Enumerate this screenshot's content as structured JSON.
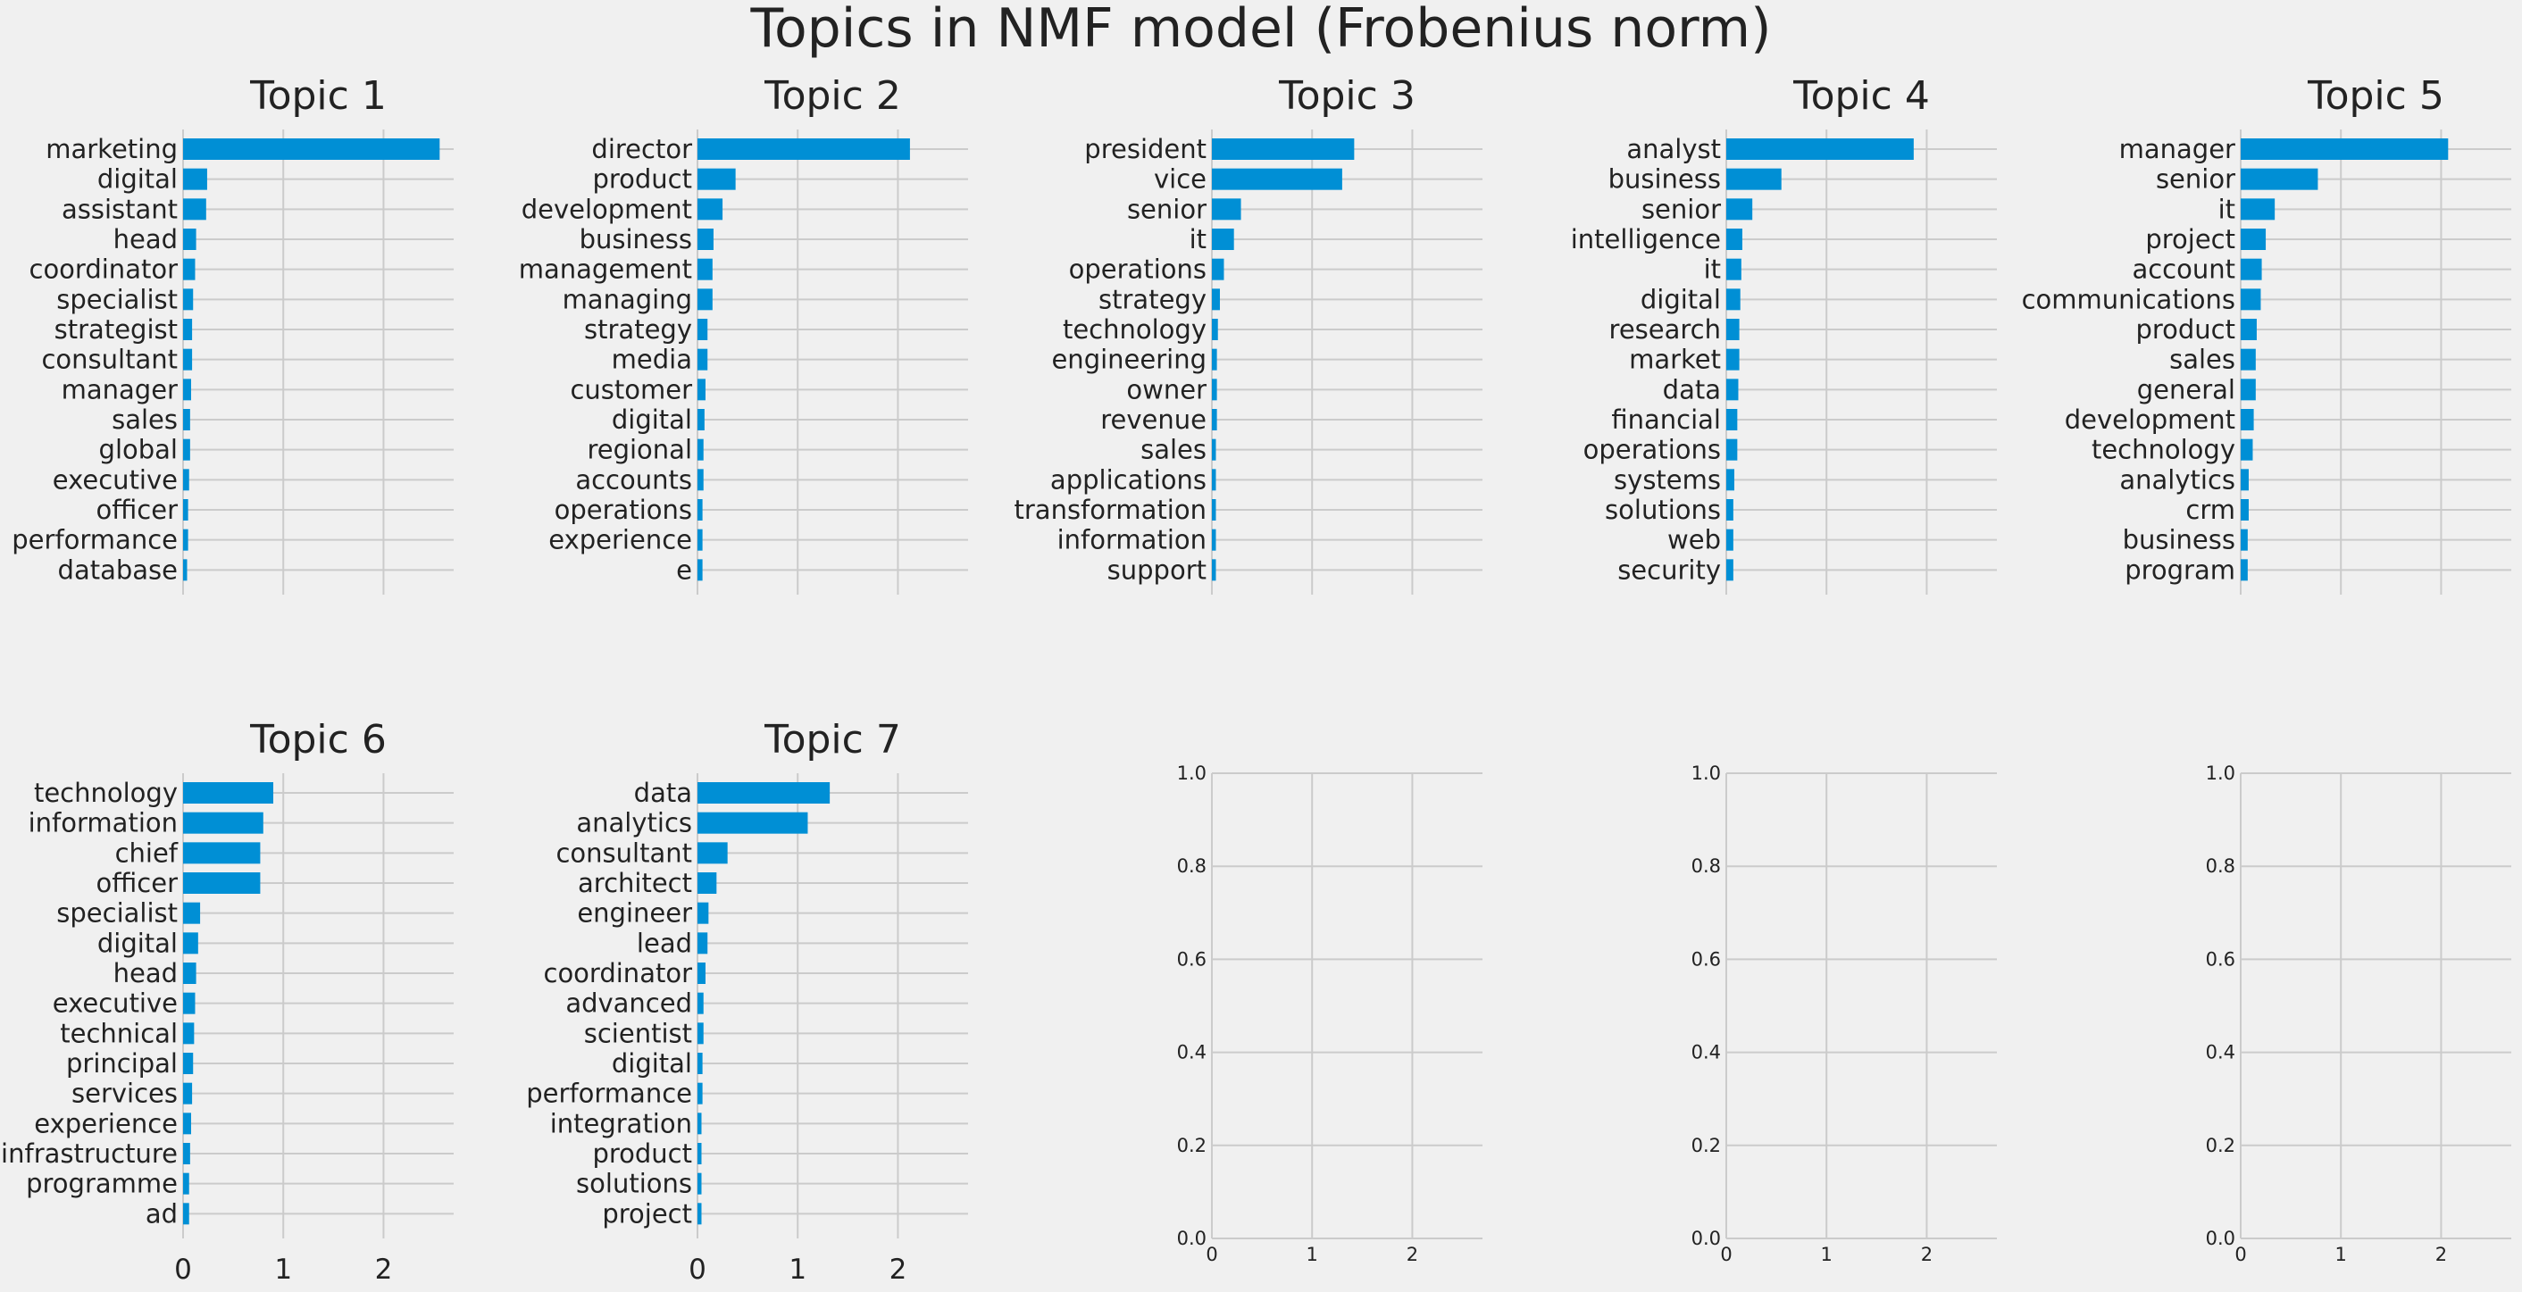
{
  "figure": {
    "title": "Topics in NMF model (Frobenius norm)",
    "background": "#f0f0f0",
    "bar_color": "#008fd5",
    "grid_color": "#cbcbcb"
  },
  "chart_data": [
    {
      "type": "bar",
      "orientation": "horizontal",
      "title": "Topic 1",
      "categories": [
        "marketing",
        "digital",
        "assistant",
        "head",
        "coordinator",
        "specialist",
        "strategist",
        "consultant",
        "manager",
        "sales",
        "global",
        "executive",
        "officer",
        "performance",
        "database"
      ],
      "values": [
        2.56,
        0.24,
        0.23,
        0.13,
        0.12,
        0.1,
        0.09,
        0.09,
        0.08,
        0.07,
        0.07,
        0.06,
        0.05,
        0.05,
        0.04
      ],
      "xlim": [
        0,
        2.7
      ],
      "xticks": [
        0,
        1,
        2
      ],
      "show_xticklabels": false
    },
    {
      "type": "bar",
      "orientation": "horizontal",
      "title": "Topic 2",
      "categories": [
        "director",
        "product",
        "development",
        "business",
        "management",
        "managing",
        "strategy",
        "media",
        "customer",
        "digital",
        "regional",
        "accounts",
        "operations",
        "experience",
        "e"
      ],
      "values": [
        2.12,
        0.38,
        0.25,
        0.16,
        0.15,
        0.15,
        0.1,
        0.1,
        0.08,
        0.07,
        0.06,
        0.06,
        0.05,
        0.05,
        0.05
      ],
      "xlim": [
        0,
        2.7
      ],
      "xticks": [
        0,
        1,
        2
      ],
      "show_xticklabels": false
    },
    {
      "type": "bar",
      "orientation": "horizontal",
      "title": "Topic 3",
      "categories": [
        "president",
        "vice",
        "senior",
        "it",
        "operations",
        "strategy",
        "technology",
        "engineering",
        "owner",
        "revenue",
        "sales",
        "applications",
        "transformation",
        "information",
        "support"
      ],
      "values": [
        1.42,
        1.3,
        0.29,
        0.22,
        0.12,
        0.08,
        0.06,
        0.05,
        0.05,
        0.05,
        0.04,
        0.04,
        0.04,
        0.04,
        0.04
      ],
      "xlim": [
        0,
        2.7
      ],
      "xticks": [
        0,
        1,
        2
      ],
      "show_xticklabels": false
    },
    {
      "type": "bar",
      "orientation": "horizontal",
      "title": "Topic 4",
      "categories": [
        "analyst",
        "business",
        "senior",
        "intelligence",
        "it",
        "digital",
        "research",
        "market",
        "data",
        "financial",
        "operations",
        "systems",
        "solutions",
        "web",
        "security"
      ],
      "values": [
        1.87,
        0.55,
        0.26,
        0.16,
        0.15,
        0.14,
        0.13,
        0.13,
        0.12,
        0.11,
        0.11,
        0.08,
        0.07,
        0.07,
        0.07
      ],
      "xlim": [
        0,
        2.7
      ],
      "xticks": [
        0,
        1,
        2
      ],
      "show_xticklabels": false
    },
    {
      "type": "bar",
      "orientation": "horizontal",
      "title": "Topic 5",
      "categories": [
        "manager",
        "senior",
        "it",
        "project",
        "account",
        "communications",
        "product",
        "sales",
        "general",
        "development",
        "technology",
        "analytics",
        "crm",
        "business",
        "program"
      ],
      "values": [
        2.07,
        0.77,
        0.34,
        0.25,
        0.21,
        0.2,
        0.16,
        0.15,
        0.15,
        0.13,
        0.12,
        0.08,
        0.08,
        0.07,
        0.07
      ],
      "xlim": [
        0,
        2.7
      ],
      "xticks": [
        0,
        1,
        2
      ],
      "show_xticklabels": false
    },
    {
      "type": "bar",
      "orientation": "horizontal",
      "title": "Topic 6",
      "categories": [
        "technology",
        "information",
        "chief",
        "officer",
        "specialist",
        "digital",
        "head",
        "executive",
        "technical",
        "principal",
        "services",
        "experience",
        "infrastructure",
        "programme",
        "ad"
      ],
      "values": [
        0.9,
        0.8,
        0.77,
        0.77,
        0.17,
        0.15,
        0.13,
        0.12,
        0.11,
        0.1,
        0.09,
        0.08,
        0.07,
        0.06,
        0.06
      ],
      "xlim": [
        0,
        2.7
      ],
      "xticks": [
        0,
        1,
        2
      ],
      "show_xticklabels": true
    },
    {
      "type": "bar",
      "orientation": "horizontal",
      "title": "Topic 7",
      "categories": [
        "data",
        "analytics",
        "consultant",
        "architect",
        "engineer",
        "lead",
        "coordinator",
        "advanced",
        "scientist",
        "digital",
        "performance",
        "integration",
        "product",
        "solutions",
        "project"
      ],
      "values": [
        1.32,
        1.1,
        0.3,
        0.19,
        0.11,
        0.1,
        0.08,
        0.06,
        0.06,
        0.05,
        0.05,
        0.04,
        0.04,
        0.04,
        0.04
      ],
      "xlim": [
        0,
        2.7
      ],
      "xticks": [
        0,
        1,
        2
      ],
      "show_xticklabels": true
    },
    {
      "type": "bar",
      "empty": true,
      "xlim": [
        0,
        2.7
      ],
      "ylim": [
        0,
        1
      ],
      "xticks": [
        0,
        1,
        2
      ],
      "yticks": [
        "0.0",
        "0.2",
        "0.4",
        "0.6",
        "0.8",
        "1.0"
      ],
      "show_xticklabels": true
    },
    {
      "type": "bar",
      "empty": true,
      "xlim": [
        0,
        2.7
      ],
      "ylim": [
        0,
        1
      ],
      "xticks": [
        0,
        1,
        2
      ],
      "yticks": [
        "0.0",
        "0.2",
        "0.4",
        "0.6",
        "0.8",
        "1.0"
      ],
      "show_xticklabels": true
    },
    {
      "type": "bar",
      "empty": true,
      "xlim": [
        0,
        2.7
      ],
      "ylim": [
        0,
        1
      ],
      "xticks": [
        0,
        1,
        2
      ],
      "yticks": [
        "0.0",
        "0.2",
        "0.4",
        "0.6",
        "0.8",
        "1.0"
      ],
      "show_xticklabels": true
    }
  ]
}
